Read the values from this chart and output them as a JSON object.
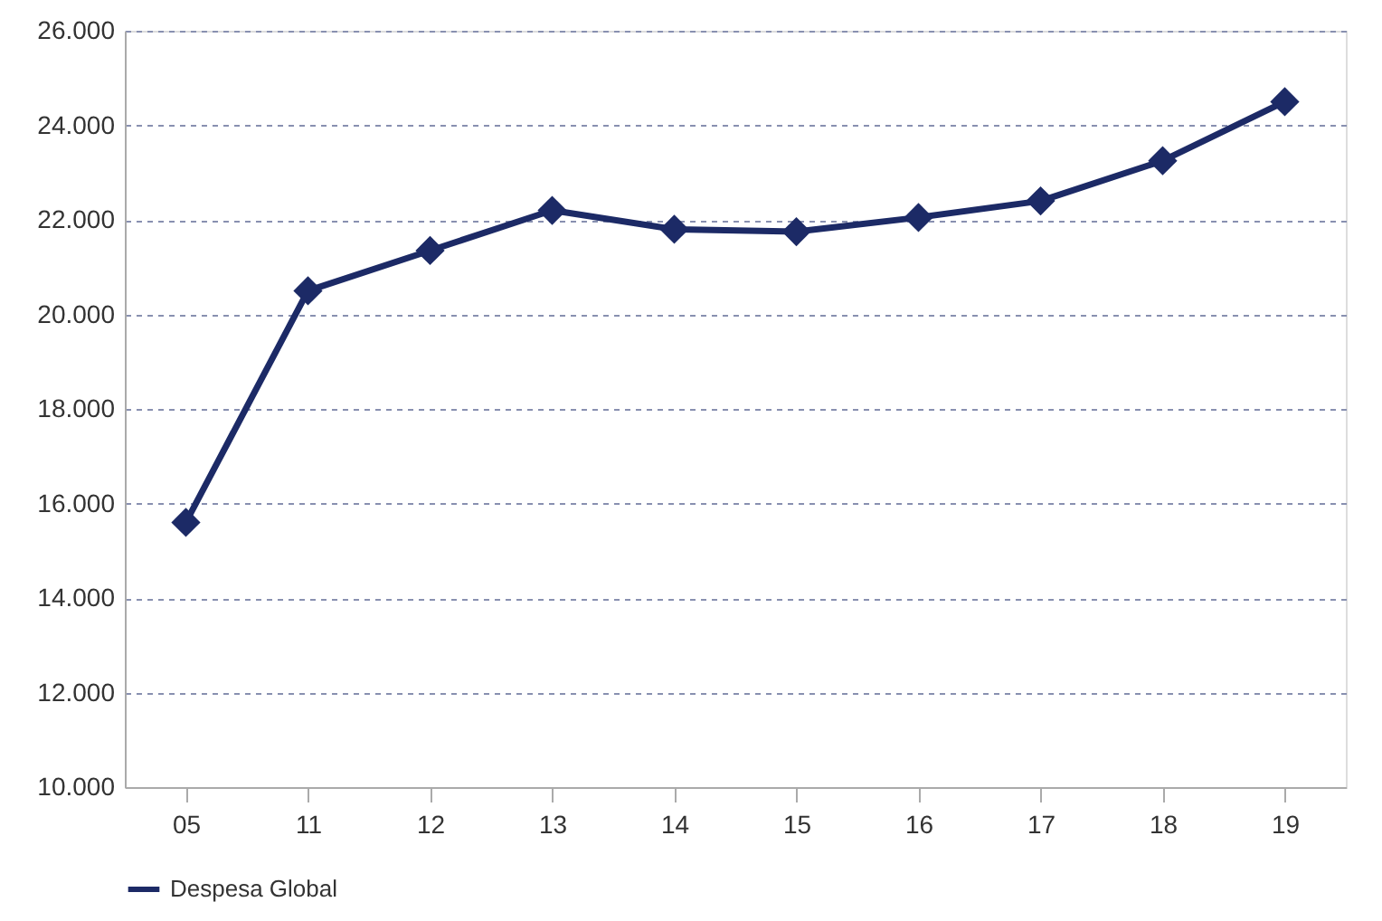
{
  "chart_data": {
    "type": "line",
    "categories": [
      "05",
      "11",
      "12",
      "13",
      "14",
      "15",
      "16",
      "17",
      "18",
      "19"
    ],
    "series": [
      {
        "name": "Despesa Global",
        "color": "#1c2a66",
        "values": [
          15600,
          20500,
          21350,
          22200,
          21800,
          21750,
          22050,
          22400,
          23250,
          24500
        ]
      }
    ],
    "ylim": [
      10000,
      26000
    ],
    "yticks": [
      {
        "value": 10000,
        "label": "10.000"
      },
      {
        "value": 12000,
        "label": "12.000"
      },
      {
        "value": 14000,
        "label": "14.000"
      },
      {
        "value": 16000,
        "label": "16.000"
      },
      {
        "value": 18000,
        "label": "18.000"
      },
      {
        "value": 20000,
        "label": "20.000"
      },
      {
        "value": 22000,
        "label": "22.000"
      },
      {
        "value": 24000,
        "label": "24.000"
      },
      {
        "value": 26000,
        "label": "26.000"
      }
    ],
    "grid": "y",
    "legend": "bottom",
    "marker": "diamond",
    "line_style": "solid"
  }
}
